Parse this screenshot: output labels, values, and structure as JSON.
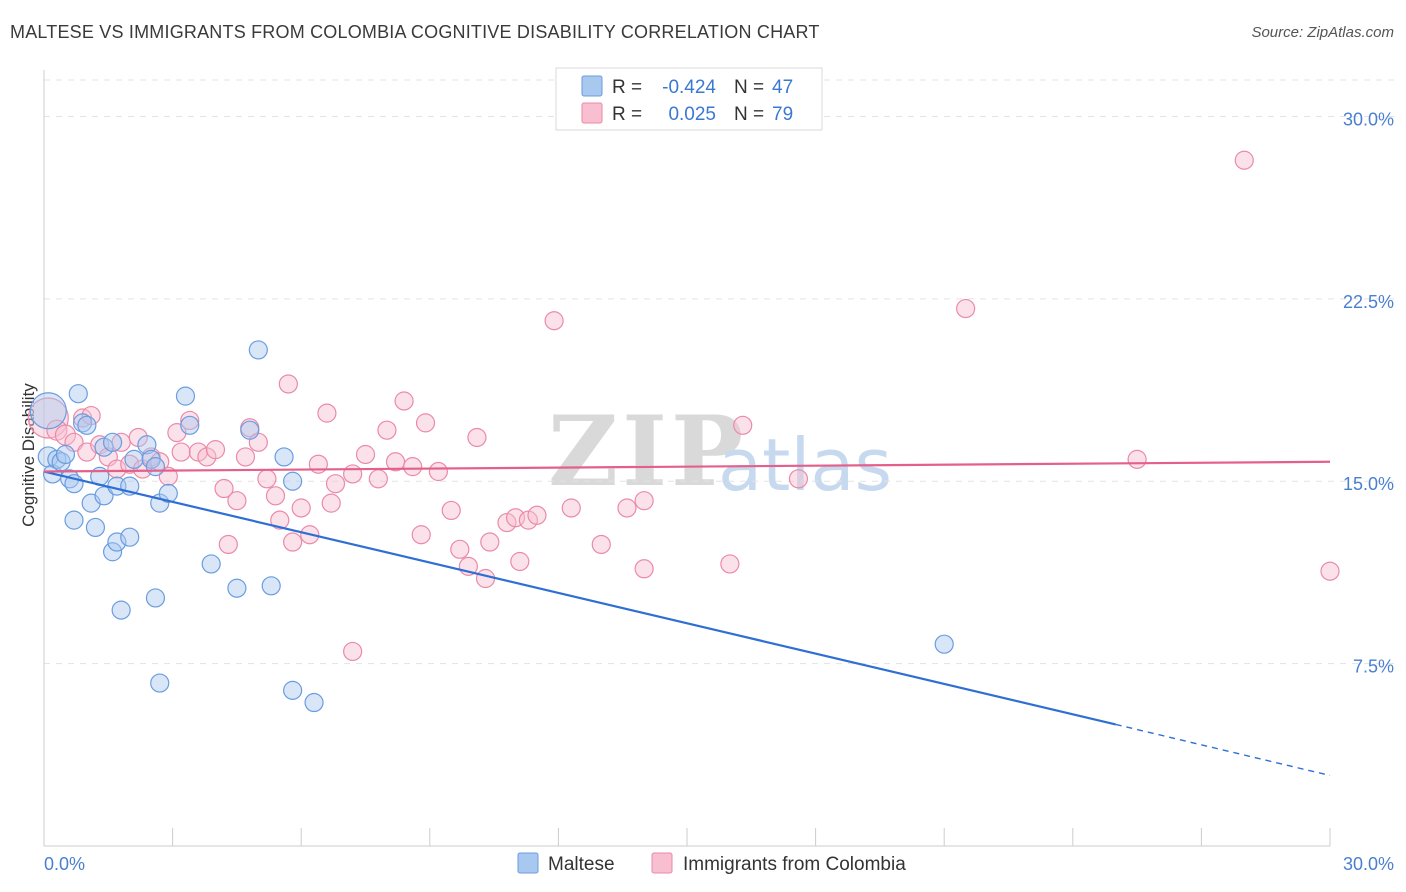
{
  "title": "MALTESE VS IMMIGRANTS FROM COLOMBIA COGNITIVE DISABILITY CORRELATION CHART",
  "source": "Source: ZipAtlas.com",
  "watermark": {
    "zip": "ZIP",
    "atlas": "atlas"
  },
  "colors": {
    "blue_fill": "#a9c8f0",
    "blue_stroke": "#6a9de0",
    "blue_line": "#2f6fd4",
    "pink_fill": "#f7bfd0",
    "pink_stroke": "#eb8aa8",
    "pink_line": "#e4608a",
    "tick_text": "#4a7fd0"
  },
  "legend": {
    "rows": [
      {
        "r_label": "R =",
        "r_value": "-0.424",
        "n_label": "N =",
        "n_value": "47"
      },
      {
        "r_label": "R =",
        "r_value": "0.025",
        "n_label": "N =",
        "n_value": "79"
      }
    ]
  },
  "chart_data": {
    "type": "scatter",
    "title": "MALTESE VS IMMIGRANTS FROM COLOMBIA COGNITIVE DISABILITY CORRELATION CHART",
    "xlabel": "",
    "ylabel": "Cognitive Disability",
    "xlim": [
      0,
      30
    ],
    "ylim": [
      0,
      31.5
    ],
    "x_tick_labels": [
      "0.0%",
      "30.0%"
    ],
    "y_ticks": [
      7.5,
      15.0,
      22.5,
      30.0
    ],
    "y_tick_labels": [
      "7.5%",
      "15.0%",
      "22.5%",
      "30.0%"
    ],
    "series": [
      {
        "name": "Maltese",
        "color": "#6a9de0",
        "R": -0.424,
        "N": 47,
        "trend": {
          "x0": 0,
          "y0": 15.4,
          "x1": 25.0,
          "y1": 5.0,
          "dash_to_x": 30,
          "dash_to_y": 2.9
        },
        "points": [
          [
            0.1,
            17.9,
            18
          ],
          [
            0.1,
            16.0,
            10
          ],
          [
            0.2,
            15.3,
            9
          ],
          [
            0.3,
            15.9,
            9
          ],
          [
            0.4,
            15.8,
            9
          ],
          [
            0.5,
            16.1,
            9
          ],
          [
            0.6,
            15.1,
            9
          ],
          [
            0.7,
            14.9,
            9
          ],
          [
            0.7,
            13.4,
            9
          ],
          [
            0.8,
            18.6,
            9
          ],
          [
            0.9,
            17.4,
            9
          ],
          [
            1.0,
            17.3,
            9
          ],
          [
            1.1,
            14.1,
            9
          ],
          [
            1.2,
            13.1,
            9
          ],
          [
            1.3,
            15.2,
            9
          ],
          [
            1.4,
            16.4,
            9
          ],
          [
            1.4,
            14.4,
            9
          ],
          [
            1.6,
            16.6,
            9
          ],
          [
            1.6,
            12.1,
            9
          ],
          [
            1.7,
            14.8,
            9
          ],
          [
            1.7,
            12.5,
            9
          ],
          [
            1.8,
            9.7,
            9
          ],
          [
            2.0,
            14.8,
            9
          ],
          [
            2.0,
            12.7,
            9
          ],
          [
            2.1,
            15.9,
            9
          ],
          [
            2.4,
            16.5,
            9
          ],
          [
            2.5,
            15.9,
            9
          ],
          [
            2.6,
            15.6,
            9
          ],
          [
            2.6,
            10.2,
            9
          ],
          [
            2.7,
            14.1,
            9
          ],
          [
            2.7,
            6.7,
            9
          ],
          [
            2.9,
            14.5,
            9
          ],
          [
            3.3,
            18.5,
            9
          ],
          [
            3.4,
            17.3,
            9
          ],
          [
            3.9,
            11.6,
            9
          ],
          [
            4.5,
            10.6,
            9
          ],
          [
            4.8,
            17.1,
            9
          ],
          [
            5.0,
            20.4,
            9
          ],
          [
            5.3,
            10.7,
            9
          ],
          [
            5.6,
            16.0,
            9
          ],
          [
            5.8,
            15.0,
            9
          ],
          [
            5.8,
            6.4,
            9
          ],
          [
            6.3,
            5.9,
            9
          ],
          [
            21.0,
            8.3,
            9
          ]
        ]
      },
      {
        "name": "Immigrants from Colombia",
        "color": "#eb8aa8",
        "R": 0.025,
        "N": 79,
        "trend": {
          "x0": 0,
          "y0": 15.4,
          "x1": 30,
          "y1": 15.8
        },
        "points": [
          [
            0.1,
            17.6,
            20
          ],
          [
            0.3,
            17.1,
            10
          ],
          [
            0.5,
            16.9,
            10
          ],
          [
            0.7,
            16.6,
            9
          ],
          [
            0.9,
            17.6,
            9
          ],
          [
            1.0,
            16.2,
            9
          ],
          [
            1.1,
            17.7,
            9
          ],
          [
            1.3,
            16.5,
            9
          ],
          [
            1.5,
            16.0,
            9
          ],
          [
            1.7,
            15.5,
            9
          ],
          [
            1.8,
            16.6,
            9
          ],
          [
            2.0,
            15.7,
            9
          ],
          [
            2.2,
            16.8,
            9
          ],
          [
            2.3,
            15.5,
            9
          ],
          [
            2.5,
            16.0,
            9
          ],
          [
            2.7,
            15.8,
            9
          ],
          [
            2.9,
            15.2,
            9
          ],
          [
            3.1,
            17.0,
            9
          ],
          [
            3.2,
            16.2,
            9
          ],
          [
            3.4,
            17.5,
            9
          ],
          [
            3.6,
            16.2,
            9
          ],
          [
            3.8,
            16.0,
            9
          ],
          [
            4.0,
            16.3,
            9
          ],
          [
            4.2,
            14.7,
            9
          ],
          [
            4.3,
            12.4,
            9
          ],
          [
            4.5,
            14.2,
            9
          ],
          [
            4.7,
            16.0,
            9
          ],
          [
            4.8,
            17.2,
            9
          ],
          [
            5.0,
            16.6,
            9
          ],
          [
            5.2,
            15.1,
            9
          ],
          [
            5.4,
            14.4,
            9
          ],
          [
            5.5,
            13.4,
            9
          ],
          [
            5.7,
            19.0,
            9
          ],
          [
            5.8,
            12.5,
            9
          ],
          [
            6.0,
            13.9,
            9
          ],
          [
            6.2,
            12.8,
            9
          ],
          [
            6.4,
            15.7,
            9
          ],
          [
            6.6,
            17.8,
            9
          ],
          [
            6.7,
            14.1,
            9
          ],
          [
            6.8,
            14.9,
            9
          ],
          [
            7.2,
            15.3,
            9
          ],
          [
            7.5,
            16.1,
            9
          ],
          [
            7.8,
            15.1,
            9
          ],
          [
            8.0,
            17.1,
            9
          ],
          [
            8.2,
            15.8,
            9
          ],
          [
            8.4,
            18.3,
            9
          ],
          [
            8.6,
            15.6,
            9
          ],
          [
            8.8,
            12.8,
            9
          ],
          [
            8.9,
            17.4,
            9
          ],
          [
            9.2,
            15.4,
            9
          ],
          [
            9.5,
            13.8,
            9
          ],
          [
            9.7,
            12.2,
            9
          ],
          [
            9.9,
            11.5,
            9
          ],
          [
            10.1,
            16.8,
            9
          ],
          [
            10.3,
            11.0,
            9
          ],
          [
            10.4,
            12.5,
            9
          ],
          [
            10.8,
            13.3,
            9
          ],
          [
            11.0,
            13.5,
            9
          ],
          [
            11.1,
            11.7,
            9
          ],
          [
            11.3,
            13.4,
            9
          ],
          [
            11.5,
            13.6,
            9
          ],
          [
            11.9,
            21.6,
            9
          ],
          [
            12.3,
            13.9,
            9
          ],
          [
            13.0,
            12.4,
            9
          ],
          [
            13.6,
            13.9,
            9
          ],
          [
            14.0,
            14.2,
            9
          ],
          [
            14.0,
            11.4,
            9
          ],
          [
            16.0,
            11.6,
            9
          ],
          [
            16.3,
            17.3,
            9
          ],
          [
            17.6,
            15.1,
            9
          ],
          [
            21.5,
            22.1,
            9
          ],
          [
            25.5,
            15.9,
            9
          ],
          [
            28.0,
            28.2,
            9
          ],
          [
            30.0,
            11.3,
            9
          ],
          [
            7.2,
            8.0,
            9
          ]
        ]
      }
    ],
    "legend_position": "top-center"
  }
}
